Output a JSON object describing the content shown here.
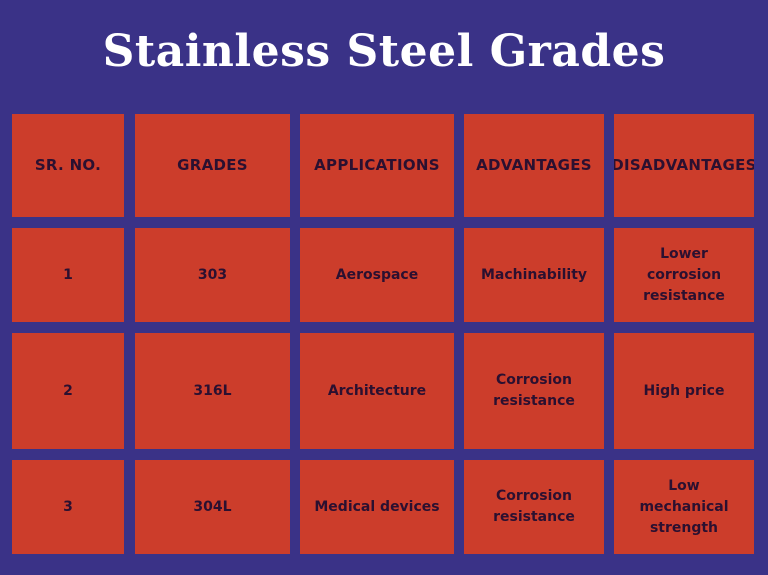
{
  "title": "Stainless Steel Grades",
  "table": {
    "headers": [
      "SR. NO.",
      "GRADES",
      "APPLICATIONS",
      "ADVANTAGES",
      "DISADVANTAGES"
    ],
    "rows": [
      [
        "1",
        "303",
        "Aerospace",
        "Machinability",
        "Lower corrosion resistance"
      ],
      [
        "2",
        "316L",
        "Architecture",
        "Corrosion resistance",
        "High price"
      ],
      [
        "3",
        "304L",
        "Medical devices",
        "Corrosion resistance",
        "Low mechanical strength"
      ]
    ]
  },
  "colors": {
    "background": "#3a3287",
    "cell": "#cc3d2b",
    "cell_text": "#2b1030",
    "title_text": "#ffffff"
  }
}
